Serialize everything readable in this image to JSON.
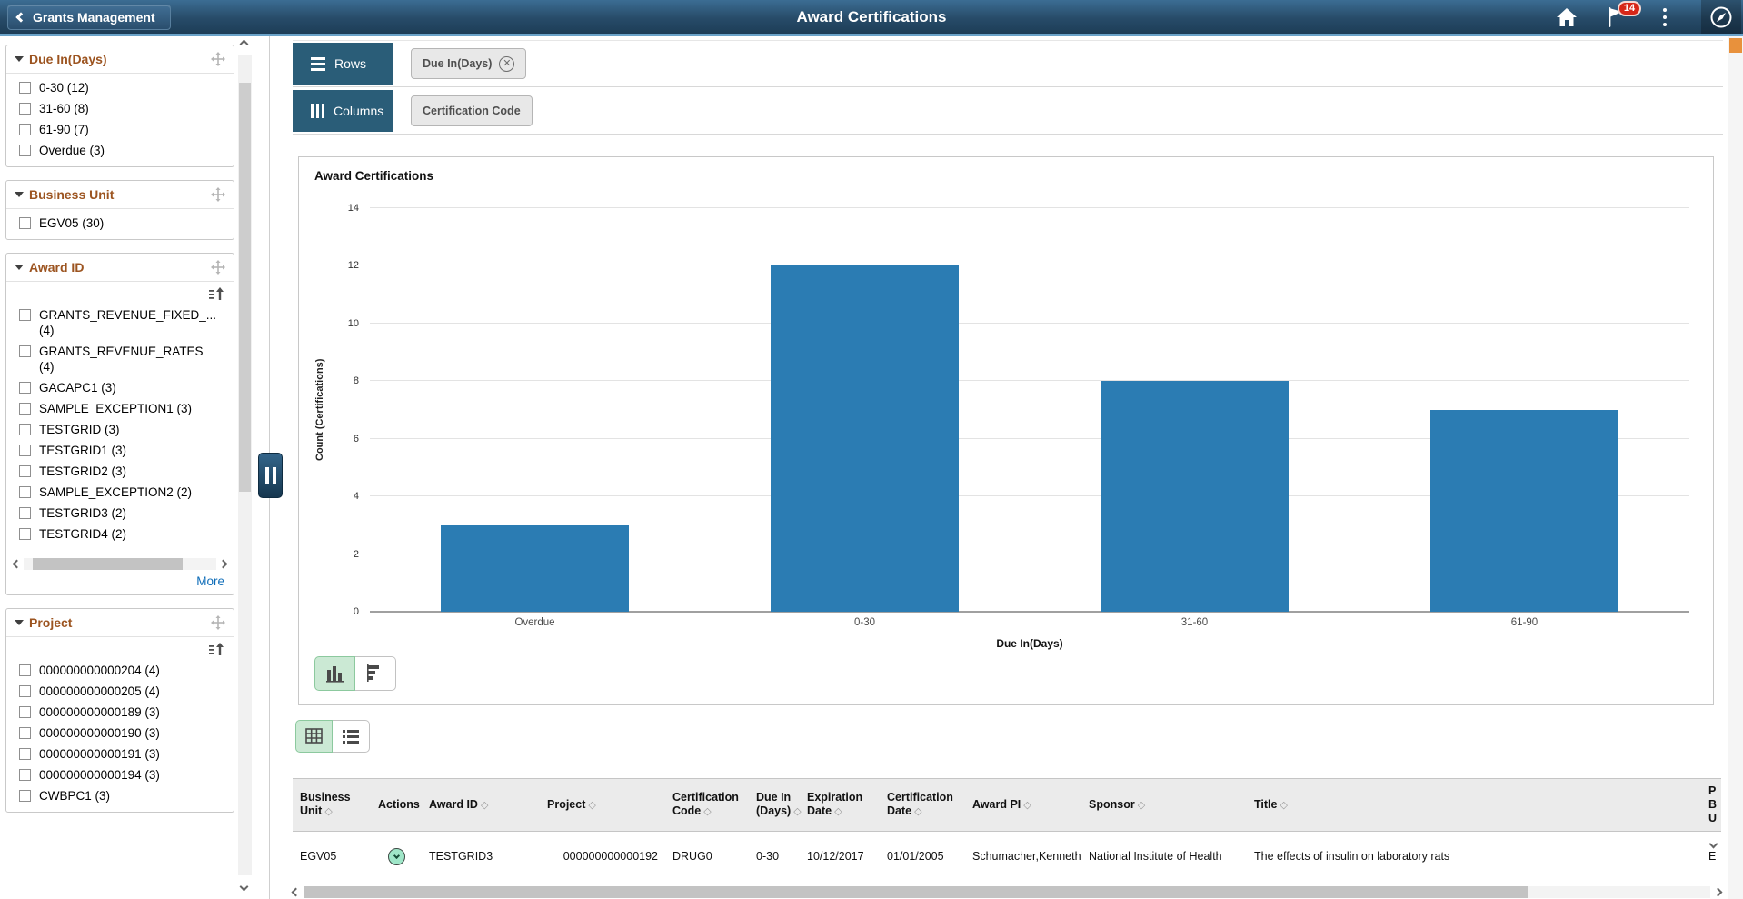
{
  "header": {
    "back_label": "Grants Management",
    "title": "Award Certifications",
    "badge": "14",
    "icons": [
      "back-chevron-icon",
      "home-icon",
      "flag-icon",
      "kebab-menu-icon",
      "navbar-compass-icon"
    ]
  },
  "sidebar": {
    "facets": [
      {
        "title": "Due In(Days)",
        "sortable": false,
        "hscroll": false,
        "more_label": null,
        "items": [
          "0-30 (12)",
          "31-60 (8)",
          "61-90 (7)",
          "Overdue (3)"
        ]
      },
      {
        "title": "Business Unit",
        "sortable": false,
        "hscroll": false,
        "more_label": null,
        "items": [
          "EGV05 (30)"
        ]
      },
      {
        "title": "Award ID",
        "sortable": true,
        "hscroll": true,
        "more_label": "More",
        "items": [
          "GRANTS_REVENUE_FIXED_...\n(4)",
          "GRANTS_REVENUE_RATES\n(4)",
          "GACAPC1 (3)",
          "SAMPLE_EXCEPTION1 (3)",
          "TESTGRID (3)",
          "TESTGRID1 (3)",
          "TESTGRID2 (3)",
          "SAMPLE_EXCEPTION2 (2)",
          "TESTGRID3 (2)",
          "TESTGRID4 (2)"
        ]
      },
      {
        "title": "Project",
        "sortable": true,
        "hscroll": false,
        "more_label": null,
        "items": [
          "000000000000204 (4)",
          "000000000000205 (4)",
          "000000000000189 (3)",
          "000000000000190 (3)",
          "000000000000191 (3)",
          "000000000000194 (3)",
          "CWBPC1 (3)"
        ]
      }
    ]
  },
  "pivot": {
    "rows_label": "Rows",
    "rows_chip": "Due In(Days)",
    "rows_chip_removable": true,
    "columns_label": "Columns",
    "columns_chip": "Certification Code"
  },
  "chart_data": {
    "type": "bar",
    "title": "Award Certifications",
    "categories": [
      "Overdue",
      "0-30",
      "31-60",
      "61-90"
    ],
    "values": [
      3,
      12,
      8,
      7
    ],
    "xlabel": "Due In(Days)",
    "ylabel": "Count (Certifications)",
    "ylim": [
      0,
      14
    ],
    "ytick_step": 2,
    "bar_color": "#2b7cb3",
    "grid": true,
    "legend": "none"
  },
  "controls": {
    "chart_types": [
      "vertical-bar-chart",
      "horizontal-bar-chart"
    ],
    "chart_type_selected": 0,
    "views": [
      "grid-view",
      "list-view"
    ],
    "view_selected": 0
  },
  "table": {
    "columns": [
      {
        "label": "Business Unit",
        "sortable": true
      },
      {
        "label": "Actions",
        "sortable": false
      },
      {
        "label": "Award ID",
        "sortable": true
      },
      {
        "label": "Project",
        "sortable": true
      },
      {
        "label": "Certification Code",
        "sortable": true
      },
      {
        "label": "Due In (Days)",
        "sortable": true
      },
      {
        "label": "Expiration Date",
        "sortable": true
      },
      {
        "label": "Certification Date",
        "sortable": true
      },
      {
        "label": "Award PI",
        "sortable": true
      },
      {
        "label": "Sponsor",
        "sortable": true
      },
      {
        "label": "Title",
        "sortable": true
      },
      {
        "label": "P B U",
        "sortable": false
      }
    ],
    "rows": [
      [
        "EGV05",
        "",
        "TESTGRID3",
        "000000000000192",
        "DRUG0",
        "0-30",
        "10/12/2017",
        "01/01/2005",
        "Schumacher,Kenneth",
        "National Institute of Health",
        "The effects of insulin on laboratory rats",
        "E"
      ]
    ]
  }
}
